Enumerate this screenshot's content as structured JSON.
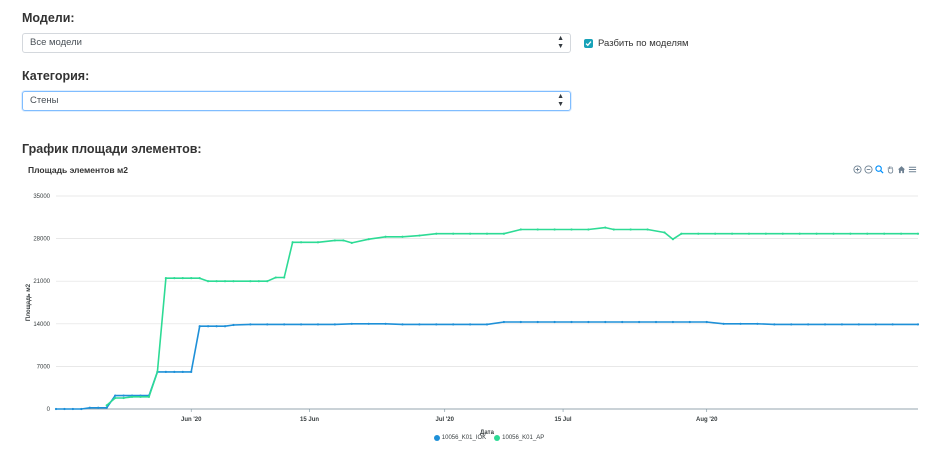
{
  "form": {
    "models_label": "Модели:",
    "models_value": "Все модели",
    "split_label": "Разбить по моделям",
    "category_label": "Категория:",
    "category_value": "Стены",
    "chart_section_label": "График площади элементов:"
  },
  "toolbar": {
    "icons": [
      "zoom-in-icon",
      "zoom-out-icon",
      "zoom-select-icon",
      "pan-hand-icon",
      "home-reset-icon",
      "menu-icon"
    ]
  },
  "colors": {
    "series1": "#1E90D8",
    "series2": "#2DDB95",
    "checkbox": "#17a2b8"
  },
  "chart_data": {
    "type": "line",
    "title": "Площадь элементов м2",
    "xlabel": "Дата",
    "ylabel": "Площадь м2",
    "ylim": [
      0,
      35000
    ],
    "yticks": [
      "0",
      "7000",
      "14000",
      "21000",
      "28000",
      "35000"
    ],
    "xlim": [
      "2020-05-16",
      "2020-08-26"
    ],
    "xticks": [
      {
        "date": "2020-06-01",
        "label": "Jun '20"
      },
      {
        "date": "2020-06-15",
        "label": "15 Jun"
      },
      {
        "date": "2020-07-01",
        "label": "Jul '20"
      },
      {
        "date": "2020-07-15",
        "label": "15 Jul"
      },
      {
        "date": "2020-08-01",
        "label": "Aug '20"
      }
    ],
    "grid": true,
    "legend_position": "bottom",
    "series": [
      {
        "name": "10056_K01_IOK",
        "points": [
          [
            "2020-05-16",
            0
          ],
          [
            "2020-05-17",
            0
          ],
          [
            "2020-05-18",
            0
          ],
          [
            "2020-05-19",
            0
          ],
          [
            "2020-05-20",
            200
          ],
          [
            "2020-05-21",
            200
          ],
          [
            "2020-05-22",
            200
          ],
          [
            "2020-05-23",
            2200
          ],
          [
            "2020-05-24",
            2200
          ],
          [
            "2020-05-25",
            2200
          ],
          [
            "2020-05-26",
            2200
          ],
          [
            "2020-05-27",
            2200
          ],
          [
            "2020-05-28",
            6100
          ],
          [
            "2020-05-29",
            6100
          ],
          [
            "2020-05-30",
            6100
          ],
          [
            "2020-05-31",
            6100
          ],
          [
            "2020-06-01",
            6100
          ],
          [
            "2020-06-02",
            13600
          ],
          [
            "2020-06-03",
            13600
          ],
          [
            "2020-06-04",
            13600
          ],
          [
            "2020-06-05",
            13600
          ],
          [
            "2020-06-06",
            13800
          ],
          [
            "2020-06-08",
            13900
          ],
          [
            "2020-06-10",
            13900
          ],
          [
            "2020-06-12",
            13900
          ],
          [
            "2020-06-14",
            13900
          ],
          [
            "2020-06-16",
            13900
          ],
          [
            "2020-06-18",
            13900
          ],
          [
            "2020-06-20",
            14000
          ],
          [
            "2020-06-22",
            14000
          ],
          [
            "2020-06-24",
            14000
          ],
          [
            "2020-06-26",
            13900
          ],
          [
            "2020-06-28",
            13900
          ],
          [
            "2020-06-30",
            13900
          ],
          [
            "2020-07-02",
            13900
          ],
          [
            "2020-07-04",
            13900
          ],
          [
            "2020-07-06",
            13900
          ],
          [
            "2020-07-08",
            14300
          ],
          [
            "2020-07-10",
            14300
          ],
          [
            "2020-07-12",
            14300
          ],
          [
            "2020-07-14",
            14300
          ],
          [
            "2020-07-16",
            14300
          ],
          [
            "2020-07-18",
            14300
          ],
          [
            "2020-07-20",
            14300
          ],
          [
            "2020-07-22",
            14300
          ],
          [
            "2020-07-24",
            14300
          ],
          [
            "2020-07-26",
            14300
          ],
          [
            "2020-07-28",
            14300
          ],
          [
            "2020-07-30",
            14300
          ],
          [
            "2020-08-01",
            14300
          ],
          [
            "2020-08-03",
            14000
          ],
          [
            "2020-08-05",
            14000
          ],
          [
            "2020-08-07",
            14000
          ],
          [
            "2020-08-09",
            13900
          ],
          [
            "2020-08-11",
            13900
          ],
          [
            "2020-08-13",
            13900
          ],
          [
            "2020-08-15",
            13900
          ],
          [
            "2020-08-17",
            13900
          ],
          [
            "2020-08-19",
            13900
          ],
          [
            "2020-08-21",
            13900
          ],
          [
            "2020-08-23",
            13900
          ],
          [
            "2020-08-26",
            13900
          ]
        ]
      },
      {
        "name": "10056_K01_AP",
        "points": [
          [
            "2020-05-22",
            600
          ],
          [
            "2020-05-23",
            1800
          ],
          [
            "2020-05-24",
            1800
          ],
          [
            "2020-05-25",
            2000
          ],
          [
            "2020-05-26",
            2000
          ],
          [
            "2020-05-27",
            2000
          ],
          [
            "2020-05-28",
            6100
          ],
          [
            "2020-05-29",
            21500
          ],
          [
            "2020-05-30",
            21500
          ],
          [
            "2020-05-31",
            21500
          ],
          [
            "2020-06-01",
            21500
          ],
          [
            "2020-06-02",
            21500
          ],
          [
            "2020-06-03",
            21000
          ],
          [
            "2020-06-04",
            21000
          ],
          [
            "2020-06-05",
            21000
          ],
          [
            "2020-06-06",
            21000
          ],
          [
            "2020-06-08",
            21000
          ],
          [
            "2020-06-09",
            21000
          ],
          [
            "2020-06-10",
            21000
          ],
          [
            "2020-06-11",
            21600
          ],
          [
            "2020-06-12",
            21600
          ],
          [
            "2020-06-13",
            27400
          ],
          [
            "2020-06-14",
            27400
          ],
          [
            "2020-06-16",
            27400
          ],
          [
            "2020-06-18",
            27700
          ],
          [
            "2020-06-19",
            27700
          ],
          [
            "2020-06-20",
            27300
          ],
          [
            "2020-06-22",
            27900
          ],
          [
            "2020-06-24",
            28300
          ],
          [
            "2020-06-26",
            28300
          ],
          [
            "2020-06-28",
            28500
          ],
          [
            "2020-06-30",
            28800
          ],
          [
            "2020-07-02",
            28800
          ],
          [
            "2020-07-04",
            28800
          ],
          [
            "2020-07-06",
            28800
          ],
          [
            "2020-07-08",
            28800
          ],
          [
            "2020-07-10",
            29500
          ],
          [
            "2020-07-12",
            29500
          ],
          [
            "2020-07-14",
            29500
          ],
          [
            "2020-07-16",
            29500
          ],
          [
            "2020-07-18",
            29500
          ],
          [
            "2020-07-20",
            29800
          ],
          [
            "2020-07-21",
            29500
          ],
          [
            "2020-07-23",
            29500
          ],
          [
            "2020-07-25",
            29500
          ],
          [
            "2020-07-27",
            29000
          ],
          [
            "2020-07-28",
            27900
          ],
          [
            "2020-07-29",
            28800
          ],
          [
            "2020-07-31",
            28800
          ],
          [
            "2020-08-02",
            28800
          ],
          [
            "2020-08-04",
            28800
          ],
          [
            "2020-08-06",
            28800
          ],
          [
            "2020-08-08",
            28800
          ],
          [
            "2020-08-10",
            28800
          ],
          [
            "2020-08-12",
            28800
          ],
          [
            "2020-08-14",
            28800
          ],
          [
            "2020-08-16",
            28800
          ],
          [
            "2020-08-18",
            28800
          ],
          [
            "2020-08-20",
            28800
          ],
          [
            "2020-08-22",
            28800
          ],
          [
            "2020-08-24",
            28800
          ],
          [
            "2020-08-26",
            28800
          ]
        ]
      }
    ]
  }
}
